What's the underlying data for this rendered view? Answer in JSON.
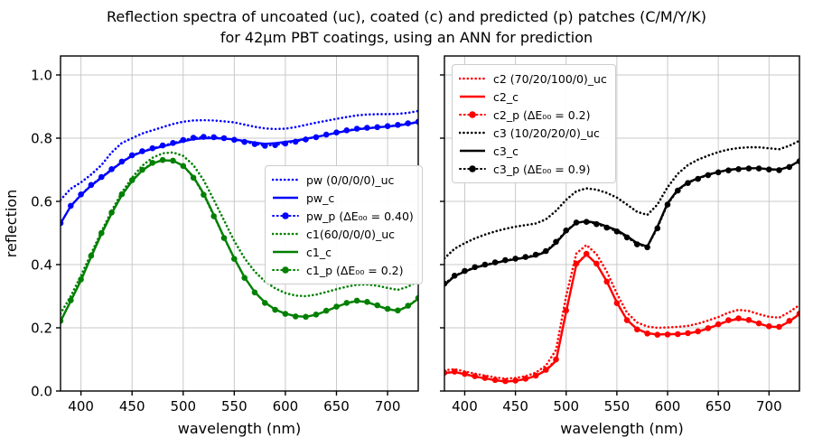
{
  "figure": {
    "title_line1": "Reflection spectra of uncoated (uc), coated (c) and predicted (p) patches (C/M/Y/K)",
    "title_line2": "for 42μm PBT coatings, using an ANN for prediction"
  },
  "colors": {
    "blue": "#0000ff",
    "green": "#008000",
    "red": "#ff0000",
    "black": "#000000",
    "grid": "#c9c9c9"
  },
  "chart_data": [
    {
      "type": "line",
      "panel": "left",
      "xlabel": "wavelength (nm)",
      "ylabel": "reflection",
      "xlim": [
        380,
        730
      ],
      "ylim": [
        0,
        1.06
      ],
      "xticks": [
        400,
        450,
        500,
        550,
        600,
        650,
        700
      ],
      "yticks": [
        0.0,
        0.2,
        0.4,
        0.6,
        0.8,
        1.0
      ],
      "ytick_labels": [
        "0.0",
        "0.2",
        "0.4",
        "0.6",
        "0.8",
        "1.0"
      ],
      "y_tick_labels_visible": true,
      "grid": true,
      "legend_position": "center right",
      "x": [
        380,
        390,
        400,
        410,
        420,
        430,
        440,
        450,
        460,
        470,
        480,
        490,
        500,
        510,
        520,
        530,
        540,
        550,
        560,
        570,
        580,
        590,
        600,
        610,
        620,
        630,
        640,
        650,
        660,
        670,
        680,
        690,
        700,
        710,
        720,
        730
      ],
      "series": [
        {
          "name": "pw (0/0/0/0)_uc",
          "color": "#0000ff",
          "style": "dotted",
          "values": [
            0.605,
            0.64,
            0.66,
            0.685,
            0.715,
            0.755,
            0.785,
            0.8,
            0.815,
            0.825,
            0.835,
            0.845,
            0.852,
            0.856,
            0.857,
            0.856,
            0.853,
            0.85,
            0.843,
            0.836,
            0.831,
            0.829,
            0.83,
            0.835,
            0.842,
            0.849,
            0.855,
            0.861,
            0.867,
            0.872,
            0.875,
            0.876,
            0.876,
            0.877,
            0.88,
            0.886
          ]
        },
        {
          "name": "pw_c",
          "color": "#0000ff",
          "style": "solid",
          "values": [
            0.53,
            0.585,
            0.62,
            0.65,
            0.675,
            0.7,
            0.724,
            0.744,
            0.757,
            0.766,
            0.774,
            0.782,
            0.79,
            0.797,
            0.8,
            0.8,
            0.799,
            0.796,
            0.791,
            0.786,
            0.782,
            0.784,
            0.788,
            0.792,
            0.798,
            0.804,
            0.81,
            0.817,
            0.823,
            0.828,
            0.831,
            0.834,
            0.837,
            0.84,
            0.845,
            0.851
          ]
        },
        {
          "name": "pw_p (ΔE₀₀ = 0.40)",
          "color": "#0000ff",
          "style": "dashdot_marker",
          "values": [
            0.531,
            0.586,
            0.622,
            0.652,
            0.677,
            0.702,
            0.726,
            0.746,
            0.759,
            0.768,
            0.777,
            0.785,
            0.794,
            0.801,
            0.804,
            0.803,
            0.8,
            0.795,
            0.788,
            0.781,
            0.776,
            0.778,
            0.783,
            0.789,
            0.796,
            0.803,
            0.811,
            0.818,
            0.825,
            0.83,
            0.833,
            0.835,
            0.838,
            0.842,
            0.847,
            0.852
          ]
        },
        {
          "name": "c1(60/0/0/0)_uc",
          "color": "#008000",
          "style": "dotted",
          "values": [
            0.245,
            0.3,
            0.365,
            0.435,
            0.505,
            0.57,
            0.628,
            0.675,
            0.713,
            0.738,
            0.752,
            0.755,
            0.744,
            0.715,
            0.667,
            0.605,
            0.54,
            0.475,
            0.42,
            0.378,
            0.347,
            0.325,
            0.31,
            0.302,
            0.3,
            0.305,
            0.313,
            0.322,
            0.33,
            0.336,
            0.337,
            0.333,
            0.326,
            0.32,
            0.33,
            0.348
          ]
        },
        {
          "name": "c1_c",
          "color": "#008000",
          "style": "solid",
          "values": [
            0.22,
            0.285,
            0.35,
            0.425,
            0.497,
            0.562,
            0.62,
            0.664,
            0.698,
            0.72,
            0.73,
            0.729,
            0.713,
            0.678,
            0.625,
            0.557,
            0.487,
            0.42,
            0.36,
            0.313,
            0.28,
            0.258,
            0.245,
            0.237,
            0.235,
            0.241,
            0.253,
            0.266,
            0.278,
            0.285,
            0.281,
            0.27,
            0.259,
            0.254,
            0.268,
            0.292
          ]
        },
        {
          "name": "c1_p (ΔE₀₀ = 0.2)",
          "color": "#008000",
          "style": "dashdot_marker",
          "values": [
            0.222,
            0.287,
            0.353,
            0.428,
            0.5,
            0.565,
            0.623,
            0.667,
            0.7,
            0.722,
            0.731,
            0.729,
            0.712,
            0.675,
            0.621,
            0.553,
            0.484,
            0.418,
            0.358,
            0.312,
            0.279,
            0.257,
            0.244,
            0.236,
            0.235,
            0.242,
            0.254,
            0.267,
            0.279,
            0.286,
            0.282,
            0.271,
            0.26,
            0.255,
            0.27,
            0.294
          ]
        }
      ]
    },
    {
      "type": "line",
      "panel": "right",
      "xlabel": "wavelength (nm)",
      "ylabel": "",
      "xlim": [
        380,
        730
      ],
      "ylim": [
        0,
        1.06
      ],
      "xticks": [
        400,
        450,
        500,
        550,
        600,
        650,
        700
      ],
      "yticks": [
        0.0,
        0.2,
        0.4,
        0.6,
        0.8,
        1.0
      ],
      "ytick_labels": [],
      "y_tick_labels_visible": false,
      "grid": true,
      "legend_position": "upper left",
      "x": [
        380,
        390,
        400,
        410,
        420,
        430,
        440,
        450,
        460,
        470,
        480,
        490,
        500,
        510,
        520,
        530,
        540,
        550,
        560,
        570,
        580,
        590,
        600,
        610,
        620,
        630,
        640,
        650,
        660,
        670,
        680,
        690,
        700,
        710,
        720,
        730
      ],
      "series": [
        {
          "name": "c2 (70/20/100/0)_uc",
          "color": "#ff0000",
          "style": "dotted",
          "values": [
            0.066,
            0.069,
            0.062,
            0.055,
            0.049,
            0.043,
            0.039,
            0.041,
            0.047,
            0.058,
            0.08,
            0.13,
            0.3,
            0.435,
            0.462,
            0.433,
            0.378,
            0.308,
            0.248,
            0.217,
            0.204,
            0.2,
            0.201,
            0.203,
            0.206,
            0.213,
            0.223,
            0.234,
            0.248,
            0.257,
            0.253,
            0.243,
            0.235,
            0.232,
            0.25,
            0.272
          ]
        },
        {
          "name": "c2_c",
          "color": "#ff0000",
          "style": "solid",
          "values": [
            0.057,
            0.06,
            0.053,
            0.046,
            0.04,
            0.034,
            0.03,
            0.032,
            0.038,
            0.048,
            0.065,
            0.095,
            0.25,
            0.4,
            0.432,
            0.402,
            0.347,
            0.28,
            0.225,
            0.196,
            0.183,
            0.179,
            0.18,
            0.18,
            0.182,
            0.188,
            0.198,
            0.21,
            0.222,
            0.228,
            0.224,
            0.213,
            0.204,
            0.202,
            0.22,
            0.243
          ]
        },
        {
          "name": "c2_p (ΔE₀₀ = 0.2)",
          "color": "#ff0000",
          "style": "dashdot_marker",
          "values": [
            0.058,
            0.061,
            0.054,
            0.047,
            0.041,
            0.035,
            0.031,
            0.033,
            0.039,
            0.049,
            0.067,
            0.1,
            0.255,
            0.403,
            0.434,
            0.403,
            0.346,
            0.278,
            0.224,
            0.195,
            0.182,
            0.178,
            0.179,
            0.18,
            0.183,
            0.189,
            0.199,
            0.211,
            0.224,
            0.23,
            0.225,
            0.214,
            0.205,
            0.203,
            0.222,
            0.245
          ]
        },
        {
          "name": "c3 (10/20/20/0)_uc",
          "color": "#000000",
          "style": "dotted",
          "values": [
            0.42,
            0.45,
            0.468,
            0.483,
            0.495,
            0.505,
            0.513,
            0.52,
            0.525,
            0.53,
            0.543,
            0.57,
            0.605,
            0.632,
            0.641,
            0.637,
            0.627,
            0.612,
            0.59,
            0.567,
            0.557,
            0.59,
            0.645,
            0.687,
            0.715,
            0.732,
            0.745,
            0.756,
            0.764,
            0.769,
            0.771,
            0.771,
            0.768,
            0.765,
            0.776,
            0.792
          ]
        },
        {
          "name": "c3_c",
          "color": "#000000",
          "style": "solid",
          "values": [
            0.335,
            0.363,
            0.378,
            0.39,
            0.398,
            0.405,
            0.412,
            0.417,
            0.422,
            0.428,
            0.44,
            0.468,
            0.505,
            0.532,
            0.537,
            0.532,
            0.521,
            0.509,
            0.49,
            0.468,
            0.457,
            0.52,
            0.594,
            0.637,
            0.66,
            0.673,
            0.685,
            0.693,
            0.7,
            0.703,
            0.705,
            0.705,
            0.702,
            0.7,
            0.71,
            0.728
          ]
        },
        {
          "name": "c3_p (ΔE₀₀ = 0.9)",
          "color": "#000000",
          "style": "dashdot_marker",
          "values": [
            0.34,
            0.365,
            0.38,
            0.392,
            0.4,
            0.407,
            0.414,
            0.419,
            0.424,
            0.431,
            0.443,
            0.472,
            0.508,
            0.533,
            0.535,
            0.528,
            0.517,
            0.505,
            0.486,
            0.464,
            0.455,
            0.515,
            0.59,
            0.634,
            0.658,
            0.671,
            0.683,
            0.692,
            0.698,
            0.702,
            0.704,
            0.704,
            0.701,
            0.699,
            0.709,
            0.727
          ]
        }
      ]
    }
  ]
}
